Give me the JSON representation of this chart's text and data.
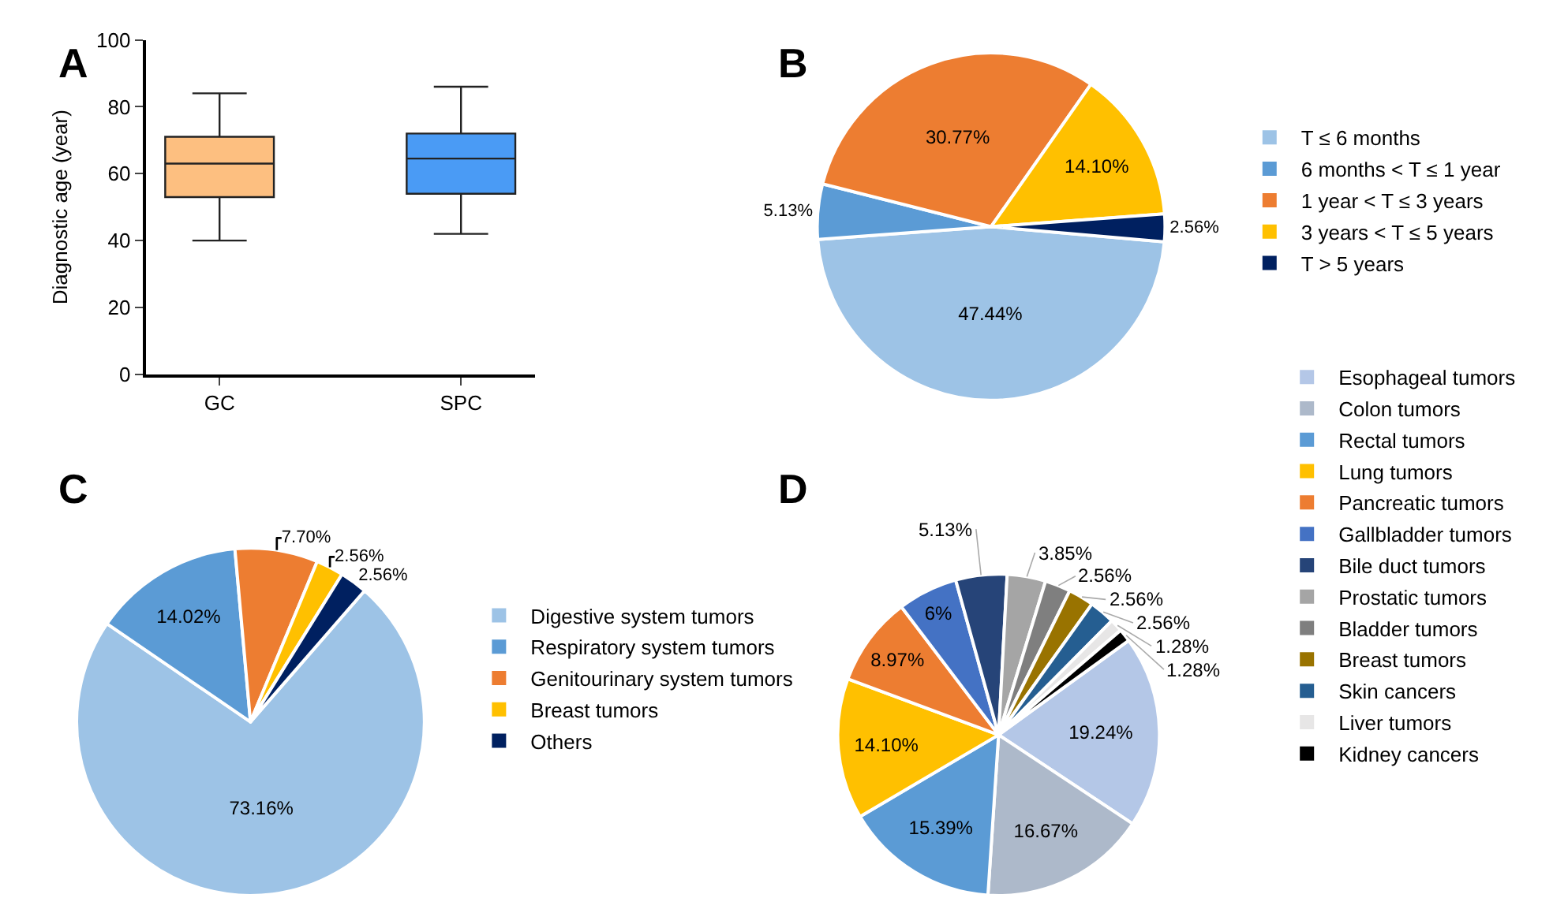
{
  "chart_data": [
    {
      "type": "box",
      "title": "A",
      "categories": [
        "GC",
        "SPC"
      ],
      "ylabel": "Diagnostic age (year)",
      "ylim": [
        0,
        100
      ],
      "yticks": [
        0,
        20,
        40,
        60,
        80,
        100
      ],
      "legend": false,
      "colors": [
        "#fdbf80",
        "#4a9bf5"
      ],
      "boxes": [
        {
          "low": 40,
          "q1": 53,
          "median": 63,
          "q3": 71,
          "high": 84
        },
        {
          "low": 42,
          "q1": 54,
          "median": 64.5,
          "q3": 72,
          "high": 86
        }
      ]
    },
    {
      "type": "pie",
      "title": "B",
      "legend": "right",
      "categories": [
        "T ≤ 6 months",
        "6 months < T ≤ 1 year",
        "1 year < T ≤ 3 years",
        "3 years < T ≤ 5 years",
        "T > 5 years"
      ],
      "values": [
        47.44,
        5.13,
        30.77,
        14.1,
        2.56
      ],
      "colors": [
        "#9dc3e6",
        "#5b9bd5",
        "#ed7d31",
        "#ffc000",
        "#002060"
      ],
      "value_labels": [
        "47.44%",
        "5.13%",
        "30.77%",
        "14.10%",
        "2.56%"
      ]
    },
    {
      "type": "pie",
      "title": "C",
      "legend": "right",
      "categories": [
        "Digestive system tumors",
        "Respiratory system tumors",
        "Genitourinary system tumors",
        "Breast tumors",
        "Others"
      ],
      "values": [
        73.16,
        14.02,
        7.7,
        2.56,
        2.56
      ],
      "colors": [
        "#9dc3e6",
        "#5b9bd5",
        "#ed7d31",
        "#ffc000",
        "#002060"
      ],
      "value_labels": [
        "73.16%",
        "14.02%",
        "7.70%",
        "2.56%",
        "2.56%"
      ]
    },
    {
      "type": "pie",
      "title": "D",
      "legend": "right",
      "categories": [
        "Esophageal tumors",
        "Colon tumors",
        "Rectal tumors",
        "Lung tumors",
        "Pancreatic tumors",
        "Gallbladder tumors",
        "Bile duct tumors",
        "Prostatic tumors",
        "Bladder tumors",
        "Breast tumors",
        "Skin cancers",
        "Liver tumors",
        "Kidney cancers"
      ],
      "values": [
        19.24,
        16.67,
        15.39,
        14.1,
        8.97,
        6,
        5.13,
        3.85,
        2.56,
        2.56,
        2.56,
        1.28,
        1.28
      ],
      "colors": [
        "#b4c7e7",
        "#adb9ca",
        "#5b9bd5",
        "#ffc000",
        "#ed7d31",
        "#4472c4",
        "#264478",
        "#a5a5a5",
        "#7f7f7f",
        "#997300",
        "#255e91",
        "#e7e6e6",
        "#000000"
      ],
      "value_labels": [
        "19.24%",
        "16.67%",
        "15.39%",
        "14.10%",
        "8.97%",
        "6%",
        "5.13%",
        "3.85%",
        "2.56%",
        "2.56%",
        "2.56%",
        "1.28%",
        "1.28%"
      ]
    }
  ]
}
